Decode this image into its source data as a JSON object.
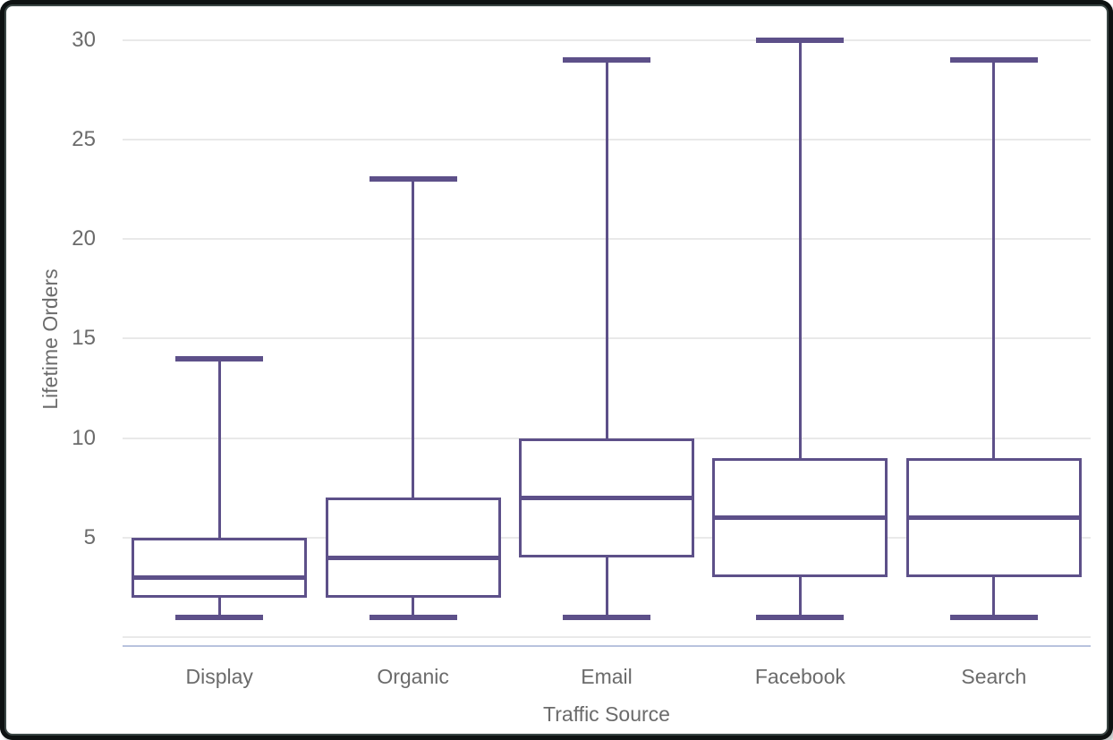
{
  "chart_data": {
    "type": "boxplot",
    "title": "",
    "xlabel": "Traffic Source",
    "ylabel": "Lifetime Orders",
    "categories": [
      "Display",
      "Organic",
      "Email",
      "Facebook",
      "Search"
    ],
    "series": [
      {
        "name": "Display",
        "min": 1,
        "q1": 2,
        "median": 3,
        "q3": 5,
        "max": 14
      },
      {
        "name": "Organic",
        "min": 1,
        "q1": 2,
        "median": 4,
        "q3": 7,
        "max": 23
      },
      {
        "name": "Email",
        "min": 1,
        "q1": 4,
        "median": 7,
        "q3": 10,
        "max": 29
      },
      {
        "name": "Facebook",
        "min": 1,
        "q1": 3,
        "median": 6,
        "q3": 9,
        "max": 30
      },
      {
        "name": "Search",
        "min": 1,
        "q1": 3,
        "median": 6,
        "q3": 9,
        "max": 29
      }
    ],
    "yticks": [
      5,
      10,
      15,
      20,
      25,
      30
    ],
    "ylim": [
      0,
      30.3
    ],
    "grid": true,
    "legend": false,
    "colors": {
      "box_stroke": "#5d5089",
      "gridline": "#e9e9e9",
      "axis_line": "#b8c3de",
      "text": "#6b6b6b",
      "background": "#ffffff",
      "frame_border": "#101314"
    }
  }
}
